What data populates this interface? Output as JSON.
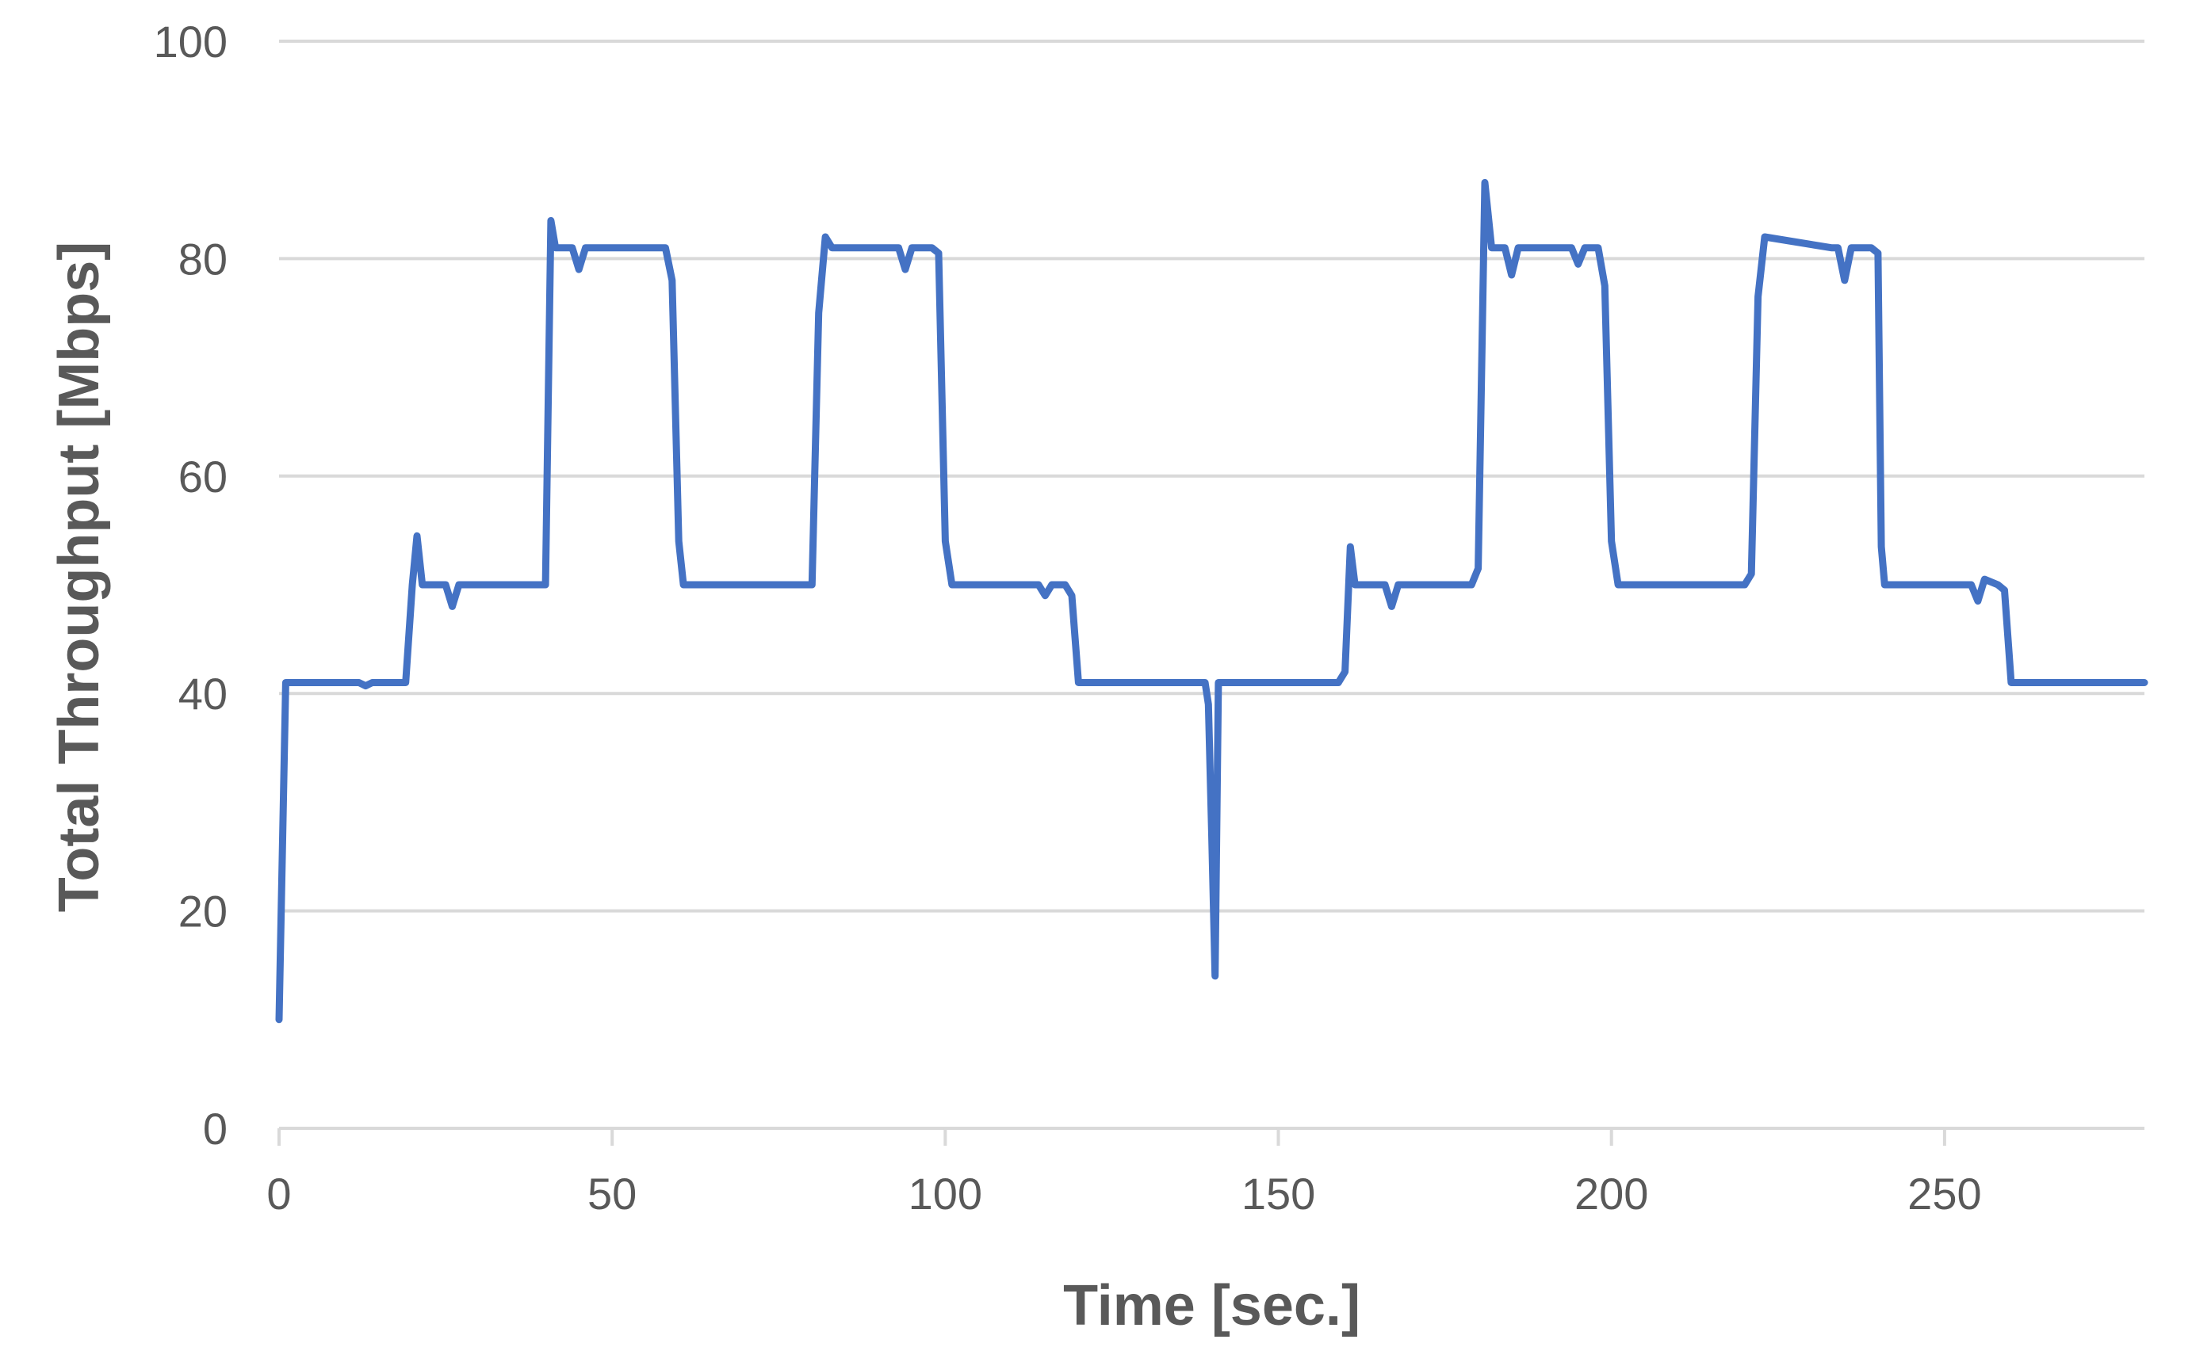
{
  "chart_data": {
    "type": "line",
    "title": "",
    "xlabel": "Time [sec.]",
    "ylabel": "Total Throughput [Mbps]",
    "xlim": [
      0,
      280
    ],
    "ylim": [
      0,
      100
    ],
    "xticks": [
      0,
      50,
      100,
      150,
      200,
      250
    ],
    "yticks": [
      0,
      20,
      40,
      60,
      80,
      100
    ],
    "xtick_labels": [
      "0",
      "50",
      "100",
      "150",
      "200",
      "250"
    ],
    "ytick_labels": [
      "0",
      "20",
      "40",
      "60",
      "80",
      "100"
    ],
    "grid": true,
    "legend": "none",
    "series": [
      {
        "name": "Total Throughput",
        "color": "#4472C4",
        "x": [
          0,
          1,
          2,
          12,
          13,
          14,
          19,
          20,
          20.7,
          21.5,
          25,
          26,
          27,
          28,
          39,
          40,
          40.8,
          41.5,
          44,
          45,
          46,
          47,
          58,
          59,
          60,
          60.7,
          61.7,
          80,
          81,
          82,
          83,
          93,
          94,
          95,
          96,
          98,
          99,
          100,
          101,
          114,
          115,
          116,
          118,
          119,
          120,
          121,
          139,
          139.5,
          140,
          140.5,
          141,
          141.5,
          159,
          160,
          160.8,
          161.5,
          166,
          167,
          168,
          179,
          180,
          181,
          182,
          183,
          184,
          185,
          186,
          187,
          188,
          194,
          195,
          196,
          198,
          199,
          200,
          201,
          220,
          221,
          222,
          223,
          233,
          234,
          235,
          236,
          239,
          240,
          240.5,
          241,
          242,
          254,
          255,
          256,
          258,
          259,
          260,
          280
        ],
        "y": [
          10,
          41,
          41,
          41,
          40.7,
          41,
          41,
          50,
          54.5,
          50,
          50,
          48,
          50,
          50,
          50,
          50,
          83.5,
          81,
          81,
          79,
          81,
          81,
          81,
          78,
          54,
          50,
          50,
          50,
          75,
          82,
          81,
          81,
          79,
          81,
          81,
          81,
          80.5,
          54,
          50,
          50,
          49,
          50,
          50,
          49,
          41,
          41,
          41,
          39,
          27,
          14,
          41,
          41,
          41,
          42,
          53.5,
          50,
          50,
          48,
          50,
          50,
          51.5,
          87,
          81,
          81,
          81,
          78.5,
          81,
          81,
          81,
          81,
          79.5,
          81,
          81,
          77.5,
          54,
          50,
          50,
          51,
          76.5,
          82,
          81,
          81,
          78,
          81,
          81,
          80.5,
          53.5,
          50,
          50,
          50,
          48.5,
          50.5,
          50,
          49.5,
          41,
          41
        ]
      }
    ]
  }
}
